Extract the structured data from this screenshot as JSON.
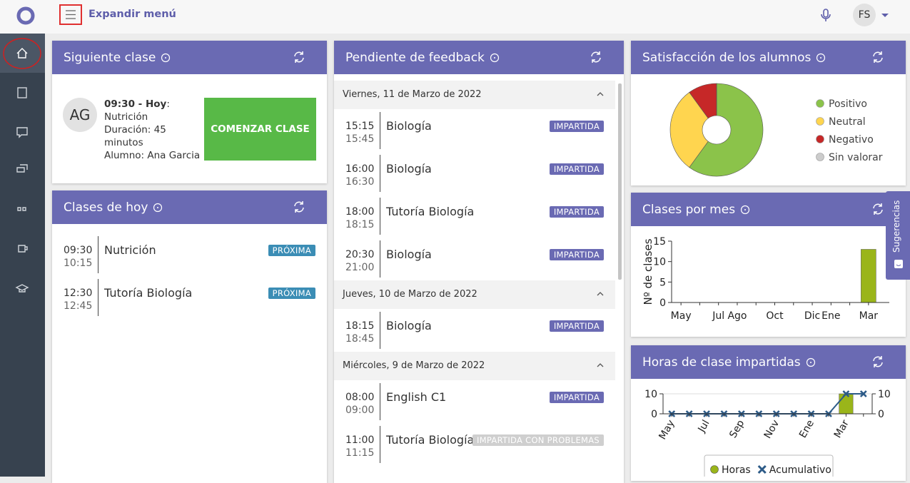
{
  "header": {
    "menu_label": "Expandir menú",
    "user_initials": "FS"
  },
  "suggestions": "Sugerencias",
  "next_class": {
    "title": "Siguiente clase",
    "initials": "AG",
    "time": "09:30 - Hoy",
    "time_suffix": ":",
    "subject": "Nutrición",
    "duration": "Duración: 45 minutos",
    "student": "Alumno: Ana Garcia",
    "button": "COMENZAR CLASE"
  },
  "today": {
    "title": "Clases de hoy",
    "items": [
      {
        "start": "09:30",
        "end": "10:15",
        "name": "Nutrición",
        "status": "PRÓXIMA",
        "status_color": "#3b8db5"
      },
      {
        "start": "12:30",
        "end": "12:45",
        "name": "Tutoría Biología",
        "status": "PRÓXIMA",
        "status_color": "#3b8db5"
      }
    ]
  },
  "pending": {
    "title": "Pendiente de feedback",
    "groups": [
      {
        "date": "Viernes, 11 de Marzo de 2022",
        "items": [
          {
            "start": "15:15",
            "end": "15:45",
            "name": "Biología",
            "status": "IMPARTIDA",
            "status_color": "#6a6ab3"
          },
          {
            "start": "16:00",
            "end": "16:30",
            "name": "Biología",
            "status": "IMPARTIDA",
            "status_color": "#6a6ab3"
          },
          {
            "start": "18:00",
            "end": "18:15",
            "name": "Tutoría Biología",
            "status": "IMPARTIDA",
            "status_color": "#6a6ab3"
          },
          {
            "start": "20:30",
            "end": "21:00",
            "name": "Biología",
            "status": "IMPARTIDA",
            "status_color": "#6a6ab3"
          }
        ]
      },
      {
        "date": "Jueves, 10 de Marzo de 2022",
        "items": [
          {
            "start": "18:15",
            "end": "18:45",
            "name": "Biología",
            "status": "IMPARTIDA",
            "status_color": "#6a6ab3"
          }
        ]
      },
      {
        "date": "Miércoles, 9 de Marzo de 2022",
        "items": [
          {
            "start": "08:00",
            "end": "09:00",
            "name": "English C1",
            "status": "IMPARTIDA",
            "status_color": "#6a6ab3"
          },
          {
            "start": "11:00",
            "end": "11:15",
            "name": "Tutoría Biología",
            "status": "IMPARTIDA CON PROBLEMAS",
            "status_color": "#cfcfcf"
          }
        ]
      }
    ]
  },
  "chart_data": [
    {
      "type": "pie",
      "title": "Satisfacción de los alumnos",
      "categories": [
        "Positivo",
        "Neutral",
        "Negativo",
        "Sin valorar"
      ],
      "values": [
        60,
        30,
        10,
        0
      ],
      "colors": [
        "#8bc34a",
        "#ffd54f",
        "#c62828",
        "#cccccc"
      ]
    },
    {
      "type": "bar",
      "title": "Clases por mes",
      "ylabel": "Nº de clases",
      "categories": [
        "May",
        null,
        "Jul",
        "Ago",
        null,
        "Oct",
        null,
        "Dic",
        "Ene",
        null,
        "Mar"
      ],
      "values": [
        0,
        0,
        0,
        0,
        0,
        0,
        0,
        0,
        0,
        0,
        13
      ],
      "color": "#9ab51a",
      "ylim": [
        0,
        15
      ],
      "yticks": [
        0,
        5,
        10,
        15
      ],
      "grid": false
    },
    {
      "type": "bar",
      "title": "Horas de clase impartidas",
      "categories": [
        "May",
        null,
        "Jul",
        null,
        "Sep",
        null,
        "Nov",
        null,
        "Ene",
        null,
        "Mar",
        null
      ],
      "series": [
        {
          "name": "Horas",
          "type": "bar",
          "color": "#9ab51a",
          "values": [
            0,
            0,
            0,
            0,
            0,
            0,
            0,
            0,
            0,
            0,
            10,
            0
          ]
        },
        {
          "name": "Acumulativo",
          "type": "line",
          "axis": "y2",
          "color": "#2d5b88",
          "values": [
            0,
            0,
            0,
            0,
            0,
            0,
            0,
            0,
            0,
            0,
            10,
            10
          ]
        }
      ],
      "ylim": [
        0,
        10
      ],
      "yticks": [
        0,
        10
      ],
      "y2lim": [
        0,
        10
      ],
      "y2ticks": [
        0,
        10
      ],
      "grid": true
    }
  ]
}
